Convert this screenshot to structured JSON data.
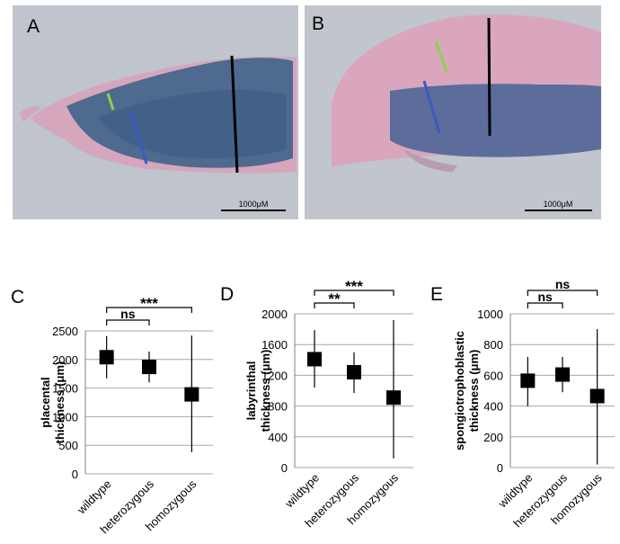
{
  "panels": {
    "A": {
      "letter": "A",
      "scale_bar_label": "1000μM"
    },
    "B": {
      "letter": "B",
      "scale_bar_label": "1000μM"
    }
  },
  "colors": {
    "marker": "#000000",
    "gridline": "#a6a6a6",
    "tissue_pink": "#d9a5bd",
    "tissue_blue": "#5c6fa0",
    "line_black": "#000000",
    "line_blue": "#3a5bc2",
    "line_green": "#8ed14a"
  },
  "chart_data": [
    {
      "panel": "C",
      "type": "scatter",
      "ylabel": "placental thickness (μm)",
      "categories": [
        "wildtype",
        "heterozygous",
        "homozygous"
      ],
      "yticks": [
        "0",
        "500",
        "1000",
        "1500",
        "2000",
        "2500"
      ],
      "ylim": [
        0,
        2500
      ],
      "grid": true,
      "series": [
        {
          "values": [
            2040,
            1870,
            1390
          ],
          "error_low": [
            1670,
            1600,
            380
          ],
          "error_high": [
            2410,
            2140,
            2420
          ]
        }
      ],
      "significance": [
        {
          "from": 0,
          "to": 1,
          "label": "ns"
        },
        {
          "from": 0,
          "to": 2,
          "label": "***"
        }
      ]
    },
    {
      "panel": "D",
      "type": "scatter",
      "ylabel": "labyrinthal thickness (μm)",
      "categories": [
        "wildtype",
        "heterozygous",
        "homozygous"
      ],
      "yticks": [
        "0",
        "400",
        "800",
        "1200",
        "1600",
        "2000"
      ],
      "ylim": [
        0,
        2000
      ],
      "grid": true,
      "series": [
        {
          "values": [
            1410,
            1240,
            910
          ],
          "error_low": [
            1040,
            970,
            120
          ],
          "error_high": [
            1790,
            1500,
            1920
          ]
        }
      ],
      "significance": [
        {
          "from": 0,
          "to": 1,
          "label": "**"
        },
        {
          "from": 0,
          "to": 2,
          "label": "***"
        }
      ]
    },
    {
      "panel": "E",
      "type": "scatter",
      "ylabel": "spongiotrophoblastic thickness (μm)",
      "categories": [
        "wildtype",
        "heterozygous",
        "homozygous"
      ],
      "yticks": [
        "0",
        "200",
        "400",
        "600",
        "800",
        "1000"
      ],
      "ylim": [
        0,
        1000
      ],
      "grid": true,
      "series": [
        {
          "values": [
            565,
            605,
            465
          ],
          "error_low": [
            400,
            490,
            20
          ],
          "error_high": [
            720,
            720,
            900
          ]
        }
      ],
      "significance": [
        {
          "from": 0,
          "to": 1,
          "label": "ns"
        },
        {
          "from": 0,
          "to": 2,
          "label": "ns"
        }
      ]
    }
  ]
}
